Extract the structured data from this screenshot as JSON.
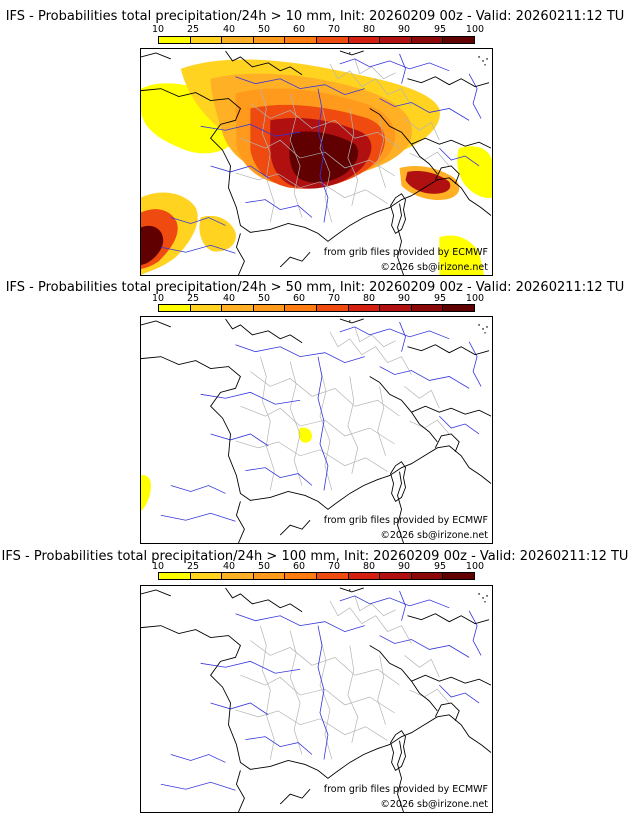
{
  "colors": {
    "scale": [
      "#ffff00",
      "#ffd320",
      "#ffb024",
      "#ff9a1c",
      "#ff7c10",
      "#ef4a10",
      "#d42010",
      "#b01010",
      "#8a0808",
      "#600000"
    ],
    "coast": "#000000",
    "rivers": "#3030e0",
    "admin": "#b0b0b0"
  },
  "scale_ticks": [
    "10",
    "25",
    "40",
    "50",
    "60",
    "70",
    "80",
    "90",
    "95",
    "100"
  ],
  "panels": [
    {
      "title": "IFS - Probabilities total precipitation/24h > 10 mm, Init: 20260209 00z - Valid: 20260211:12 TU",
      "credit_source": "from grib files provided by ECMWF",
      "credit_copyright": "©2026 sb@irizone.net"
    },
    {
      "title": "IFS - Probabilities total precipitation/24h > 50 mm, Init: 20260209 00z - Valid: 20260211:12 TU",
      "credit_source": "from grib files provided by ECMWF",
      "credit_copyright": "©2026 sb@irizone.net"
    },
    {
      "title": "IFS - Probabilities total precipitation/24h > 100 mm, Init: 20260209 00z - Valid: 20260211:12 TU",
      "credit_source": "from grib files provided by ECMWF",
      "credit_copyright": "©2026 sb@irizone.net"
    }
  ]
}
